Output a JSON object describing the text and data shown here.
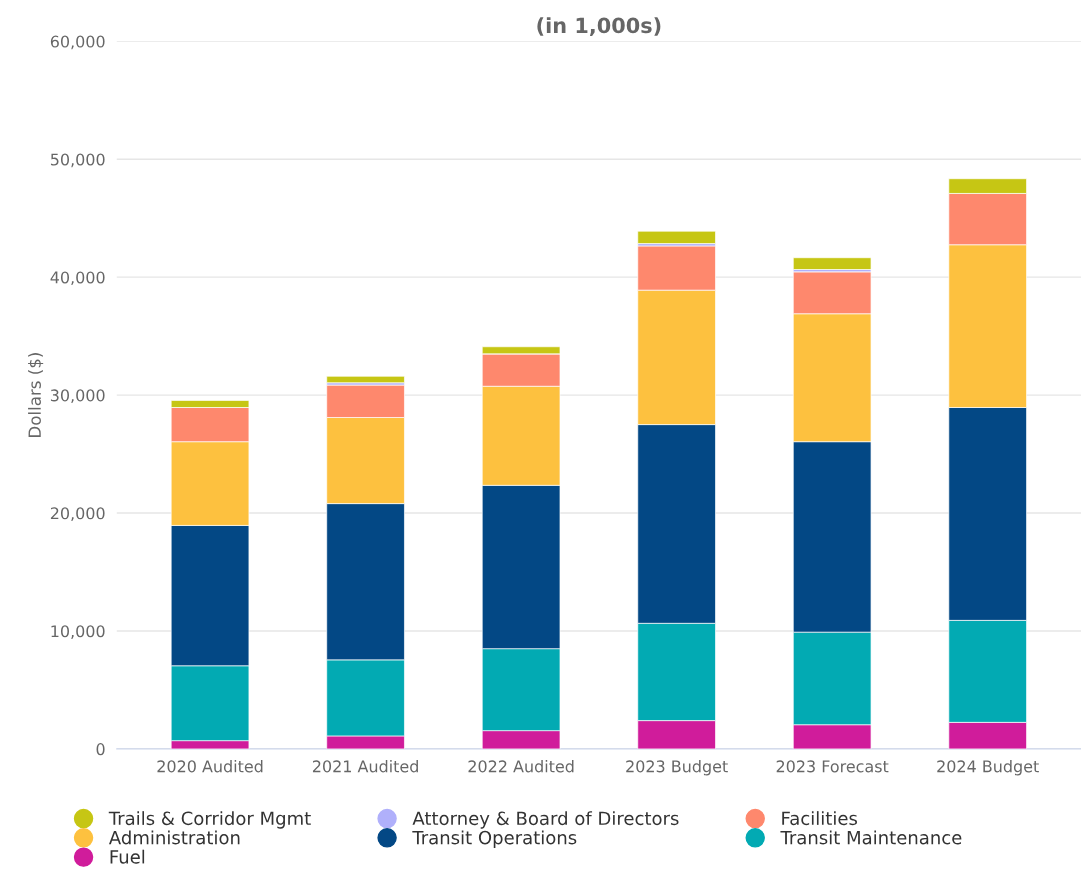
{
  "chart_data": {
    "type": "bar",
    "stacked": true,
    "title": "(in 1,000s)",
    "ylabel": "Dollars ($)",
    "categories": [
      "2020 Audited",
      "2021 Audited",
      "2022 Audited",
      "2023 Budget",
      "2023 Forecast",
      "2024 Budget"
    ],
    "series": [
      {
        "name": "Fuel",
        "color": "#d01c9b",
        "values": [
          700,
          1100,
          1550,
          2400,
          2050,
          2250
        ]
      },
      {
        "name": "Transit Maintenance",
        "color": "#02aab3",
        "values": [
          6350,
          6450,
          6950,
          8250,
          7850,
          8650
        ]
      },
      {
        "name": "Transit Operations",
        "color": "#034885",
        "values": [
          11900,
          13250,
          13850,
          16850,
          16150,
          18050
        ]
      },
      {
        "name": "Administration",
        "color": "#fdc13f",
        "values": [
          7100,
          7300,
          8400,
          11400,
          10850,
          13800
        ]
      },
      {
        "name": "Facilities",
        "color": "#fe886d",
        "values": [
          2900,
          2750,
          2750,
          3750,
          3550,
          4350
        ]
      },
      {
        "name": "Attorney & Board of Directors",
        "color": "#b0b0fb",
        "values": [
          null,
          200,
          null,
          200,
          200,
          null
        ]
      },
      {
        "name": "Trails & Corridor Mgmt",
        "color": "#c6c614",
        "values": [
          600,
          550,
          600,
          1050,
          1000,
          1250
        ]
      }
    ],
    "ylim": [
      0,
      60000
    ],
    "yticks": [
      0,
      {
        "value": 10000,
        "label": "10,000"
      },
      {
        "value": 20000,
        "label": "20,000"
      },
      {
        "value": 30000,
        "label": "30,000"
      },
      {
        "value": 40000,
        "label": "40,000"
      },
      {
        "value": 50000,
        "label": "50,000"
      },
      {
        "value": 60000,
        "label": "60,000"
      }
    ],
    "grid": "y",
    "legend": "bottom"
  }
}
